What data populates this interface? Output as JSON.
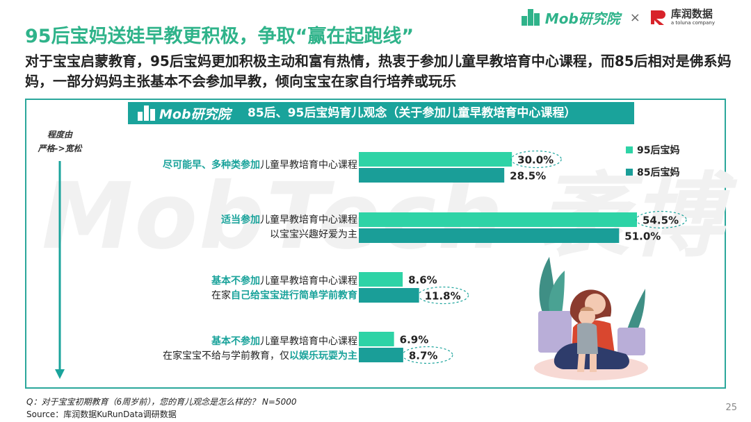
{
  "header": {
    "mob_logo": "Mob研究院",
    "times": "×",
    "partner_logo_cn": "库润数据",
    "partner_logo_en": "a toluna company"
  },
  "title": "95后宝妈送娃早教更积极，争取“赢在起跑线”",
  "subtitle": "对于宝宝启蒙教育，95后宝妈更加积极主动和富有热情，热衷于参加儿童早教培育中心课程，而85后相对是佛系妈妈，一部分妈妈主张基本不会参加早教，倾向宝宝在家自行培养或玩乐",
  "panel": {
    "logo": "Mob研究院",
    "degree_label_1": "程度由",
    "degree_label_2": "严格->宽松",
    "watermark": "MobTech 袤博"
  },
  "categories": [
    {
      "line1_hl": "尽可能早、多种类参加",
      "line1_rest": "儿童早教培育中心课程",
      "line2_plain": "",
      "line2_hl": ""
    },
    {
      "line1_hl": "适当参加",
      "line1_rest": "儿童早教培育中心课程",
      "line2_plain": "以宝宝兴趣好爱为主",
      "line2_hl": ""
    },
    {
      "line1_hl": "基本不参加",
      "line1_rest": "儿童早教培育中心课程",
      "line2_plain": "在家",
      "line2_hl": "自己给宝宝进行简单学前教育"
    },
    {
      "line1_hl": "基本不参加",
      "line1_rest": "儿童早教培育中心课程",
      "line2_plain": "在家宝宝不给与学前教育，仅",
      "line2_hl": "以娱乐玩耍为主"
    }
  ],
  "legend": [
    {
      "name": "95后宝妈",
      "color": "#2ed3a6"
    },
    {
      "name": "85后宝妈",
      "color": "#1a9e98"
    }
  ],
  "chart_data": {
    "type": "bar",
    "title": "85后、95后宝妈育儿观念（关于参加儿童早教培育中心课程）",
    "categories": [
      "尽可能早、多种类参加儿童早教培育中心课程",
      "适当参加儿童早教培育中心课程 以宝宝兴趣好爱为主",
      "基本不参加儿童早教培育中心课程 在家自己给宝宝进行简单学前教育",
      "基本不参加儿童早教培育中心课程 在家宝宝不给与学前教育，仅以娱乐玩耍为主"
    ],
    "series": [
      {
        "name": "95后宝妈",
        "values": [
          30.0,
          54.5,
          8.6,
          6.9
        ],
        "color": "#2ed3a6"
      },
      {
        "name": "85后宝妈",
        "values": [
          28.5,
          51.0,
          11.8,
          8.7
        ],
        "color": "#1a9e98"
      }
    ],
    "highlighted": [
      [
        0,
        0
      ],
      [
        1,
        0
      ],
      [
        2,
        1
      ],
      [
        3,
        1
      ]
    ],
    "unit": "%",
    "orientation": "horizontal",
    "legend_position": "top-right",
    "grid": false
  },
  "footnote": "Q：对于宝宝初期教育（6周岁前），您的育儿观念是怎么样的？ N=5000",
  "source": "Source：库润数据KuRunData调研数据",
  "page_number": "25"
}
